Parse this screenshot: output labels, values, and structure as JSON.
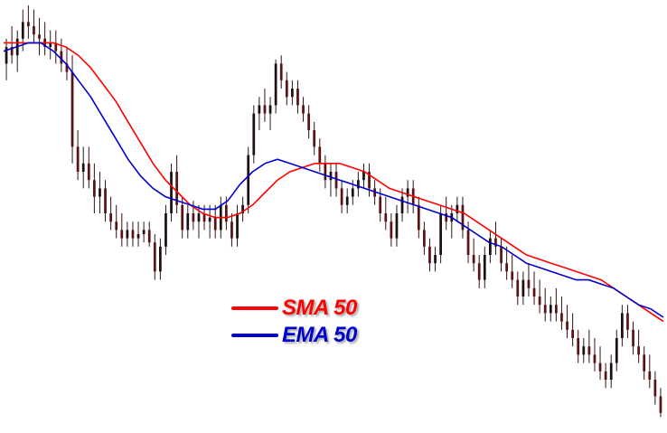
{
  "chart_data": {
    "type": "line",
    "title": "",
    "xlabel": "",
    "ylabel": "",
    "grid": false,
    "ylim": [
      0,
      100
    ],
    "legend_placement": "center-left",
    "legend": [
      {
        "label": "SMA 50",
        "color": "#ff0000"
      },
      {
        "label": "EMA 50",
        "color": "#0000cc"
      }
    ],
    "candles": [
      {
        "o": 86,
        "h": 92,
        "l": 82,
        "c": 90
      },
      {
        "o": 90,
        "h": 95,
        "l": 86,
        "c": 88
      },
      {
        "o": 88,
        "h": 94,
        "l": 84,
        "c": 92
      },
      {
        "o": 92,
        "h": 99,
        "l": 89,
        "c": 96
      },
      {
        "o": 96,
        "h": 100,
        "l": 92,
        "c": 95
      },
      {
        "o": 95,
        "h": 99,
        "l": 91,
        "c": 93
      },
      {
        "o": 93,
        "h": 97,
        "l": 88,
        "c": 92
      },
      {
        "o": 92,
        "h": 96,
        "l": 88,
        "c": 90
      },
      {
        "o": 90,
        "h": 94,
        "l": 87,
        "c": 91
      },
      {
        "o": 91,
        "h": 94,
        "l": 86,
        "c": 89
      },
      {
        "o": 89,
        "h": 92,
        "l": 84,
        "c": 86
      },
      {
        "o": 86,
        "h": 90,
        "l": 82,
        "c": 84
      },
      {
        "o": 84,
        "h": 88,
        "l": 62,
        "c": 66
      },
      {
        "o": 66,
        "h": 70,
        "l": 58,
        "c": 60
      },
      {
        "o": 60,
        "h": 66,
        "l": 56,
        "c": 62
      },
      {
        "o": 62,
        "h": 66,
        "l": 56,
        "c": 58
      },
      {
        "o": 58,
        "h": 62,
        "l": 50,
        "c": 54
      },
      {
        "o": 54,
        "h": 60,
        "l": 50,
        "c": 56
      },
      {
        "o": 56,
        "h": 58,
        "l": 48,
        "c": 50
      },
      {
        "o": 50,
        "h": 54,
        "l": 46,
        "c": 48
      },
      {
        "o": 48,
        "h": 52,
        "l": 44,
        "c": 46
      },
      {
        "o": 46,
        "h": 50,
        "l": 42,
        "c": 44
      },
      {
        "o": 44,
        "h": 48,
        "l": 42,
        "c": 46
      },
      {
        "o": 46,
        "h": 48,
        "l": 42,
        "c": 44
      },
      {
        "o": 44,
        "h": 48,
        "l": 42,
        "c": 45
      },
      {
        "o": 45,
        "h": 48,
        "l": 43,
        "c": 46
      },
      {
        "o": 46,
        "h": 48,
        "l": 42,
        "c": 43
      },
      {
        "o": 43,
        "h": 45,
        "l": 34,
        "c": 36
      },
      {
        "o": 36,
        "h": 44,
        "l": 34,
        "c": 42
      },
      {
        "o": 42,
        "h": 52,
        "l": 40,
        "c": 50
      },
      {
        "o": 50,
        "h": 62,
        "l": 48,
        "c": 60
      },
      {
        "o": 60,
        "h": 64,
        "l": 50,
        "c": 52
      },
      {
        "o": 52,
        "h": 54,
        "l": 44,
        "c": 46
      },
      {
        "o": 46,
        "h": 52,
        "l": 44,
        "c": 50
      },
      {
        "o": 50,
        "h": 53,
        "l": 46,
        "c": 48
      },
      {
        "o": 48,
        "h": 52,
        "l": 44,
        "c": 50
      },
      {
        "o": 50,
        "h": 52,
        "l": 46,
        "c": 48
      },
      {
        "o": 48,
        "h": 52,
        "l": 44,
        "c": 49
      },
      {
        "o": 49,
        "h": 52,
        "l": 44,
        "c": 46
      },
      {
        "o": 46,
        "h": 54,
        "l": 44,
        "c": 52
      },
      {
        "o": 52,
        "h": 54,
        "l": 46,
        "c": 48
      },
      {
        "o": 48,
        "h": 50,
        "l": 42,
        "c": 44
      },
      {
        "o": 44,
        "h": 52,
        "l": 42,
        "c": 50
      },
      {
        "o": 50,
        "h": 54,
        "l": 48,
        "c": 52
      },
      {
        "o": 52,
        "h": 66,
        "l": 50,
        "c": 64
      },
      {
        "o": 64,
        "h": 76,
        "l": 62,
        "c": 74
      },
      {
        "o": 74,
        "h": 78,
        "l": 70,
        "c": 76
      },
      {
        "o": 76,
        "h": 80,
        "l": 72,
        "c": 74
      },
      {
        "o": 74,
        "h": 78,
        "l": 70,
        "c": 76
      },
      {
        "o": 76,
        "h": 87,
        "l": 74,
        "c": 86
      },
      {
        "o": 86,
        "h": 88,
        "l": 80,
        "c": 82
      },
      {
        "o": 82,
        "h": 84,
        "l": 76,
        "c": 78
      },
      {
        "o": 78,
        "h": 82,
        "l": 76,
        "c": 80
      },
      {
        "o": 80,
        "h": 82,
        "l": 74,
        "c": 76
      },
      {
        "o": 76,
        "h": 78,
        "l": 72,
        "c": 74
      },
      {
        "o": 74,
        "h": 76,
        "l": 68,
        "c": 70
      },
      {
        "o": 70,
        "h": 72,
        "l": 64,
        "c": 66
      },
      {
        "o": 66,
        "h": 68,
        "l": 60,
        "c": 62
      },
      {
        "o": 62,
        "h": 64,
        "l": 56,
        "c": 58
      },
      {
        "o": 58,
        "h": 62,
        "l": 54,
        "c": 60
      },
      {
        "o": 60,
        "h": 62,
        "l": 54,
        "c": 56
      },
      {
        "o": 56,
        "h": 58,
        "l": 50,
        "c": 52
      },
      {
        "o": 52,
        "h": 56,
        "l": 50,
        "c": 54
      },
      {
        "o": 54,
        "h": 58,
        "l": 52,
        "c": 56
      },
      {
        "o": 56,
        "h": 60,
        "l": 54,
        "c": 58
      },
      {
        "o": 58,
        "h": 62,
        "l": 56,
        "c": 60
      },
      {
        "o": 60,
        "h": 62,
        "l": 54,
        "c": 56
      },
      {
        "o": 56,
        "h": 58,
        "l": 52,
        "c": 54
      },
      {
        "o": 54,
        "h": 56,
        "l": 48,
        "c": 50
      },
      {
        "o": 50,
        "h": 54,
        "l": 46,
        "c": 48
      },
      {
        "o": 48,
        "h": 50,
        "l": 42,
        "c": 44
      },
      {
        "o": 44,
        "h": 52,
        "l": 42,
        "c": 50
      },
      {
        "o": 50,
        "h": 56,
        "l": 48,
        "c": 54
      },
      {
        "o": 54,
        "h": 58,
        "l": 50,
        "c": 56
      },
      {
        "o": 56,
        "h": 58,
        "l": 50,
        "c": 52
      },
      {
        "o": 52,
        "h": 54,
        "l": 44,
        "c": 46
      },
      {
        "o": 46,
        "h": 48,
        "l": 40,
        "c": 42
      },
      {
        "o": 42,
        "h": 44,
        "l": 36,
        "c": 38
      },
      {
        "o": 38,
        "h": 42,
        "l": 36,
        "c": 40
      },
      {
        "o": 40,
        "h": 52,
        "l": 38,
        "c": 50
      },
      {
        "o": 50,
        "h": 54,
        "l": 46,
        "c": 48
      },
      {
        "o": 48,
        "h": 52,
        "l": 44,
        "c": 50
      },
      {
        "o": 50,
        "h": 54,
        "l": 48,
        "c": 52
      },
      {
        "o": 52,
        "h": 54,
        "l": 44,
        "c": 46
      },
      {
        "o": 46,
        "h": 48,
        "l": 38,
        "c": 40
      },
      {
        "o": 40,
        "h": 44,
        "l": 36,
        "c": 38
      },
      {
        "o": 38,
        "h": 40,
        "l": 32,
        "c": 34
      },
      {
        "o": 34,
        "h": 42,
        "l": 32,
        "c": 40
      },
      {
        "o": 40,
        "h": 46,
        "l": 38,
        "c": 44
      },
      {
        "o": 44,
        "h": 48,
        "l": 40,
        "c": 42
      },
      {
        "o": 42,
        "h": 44,
        "l": 36,
        "c": 38
      },
      {
        "o": 38,
        "h": 42,
        "l": 34,
        "c": 36
      },
      {
        "o": 36,
        "h": 40,
        "l": 32,
        "c": 34
      },
      {
        "o": 34,
        "h": 36,
        "l": 28,
        "c": 30
      },
      {
        "o": 30,
        "h": 36,
        "l": 28,
        "c": 34
      },
      {
        "o": 34,
        "h": 38,
        "l": 30,
        "c": 32
      },
      {
        "o": 32,
        "h": 36,
        "l": 28,
        "c": 30
      },
      {
        "o": 30,
        "h": 34,
        "l": 26,
        "c": 28
      },
      {
        "o": 28,
        "h": 32,
        "l": 24,
        "c": 26
      },
      {
        "o": 26,
        "h": 30,
        "l": 24,
        "c": 28
      },
      {
        "o": 28,
        "h": 32,
        "l": 24,
        "c": 26
      },
      {
        "o": 26,
        "h": 30,
        "l": 22,
        "c": 24
      },
      {
        "o": 24,
        "h": 28,
        "l": 20,
        "c": 22
      },
      {
        "o": 22,
        "h": 26,
        "l": 18,
        "c": 20
      },
      {
        "o": 20,
        "h": 22,
        "l": 14,
        "c": 16
      },
      {
        "o": 16,
        "h": 20,
        "l": 14,
        "c": 18
      },
      {
        "o": 18,
        "h": 22,
        "l": 14,
        "c": 16
      },
      {
        "o": 16,
        "h": 20,
        "l": 12,
        "c": 14
      },
      {
        "o": 14,
        "h": 18,
        "l": 10,
        "c": 12
      },
      {
        "o": 12,
        "h": 14,
        "l": 8,
        "c": 10
      },
      {
        "o": 10,
        "h": 16,
        "l": 8,
        "c": 14
      },
      {
        "o": 14,
        "h": 22,
        "l": 12,
        "c": 20
      },
      {
        "o": 20,
        "h": 28,
        "l": 18,
        "c": 26
      },
      {
        "o": 26,
        "h": 28,
        "l": 20,
        "c": 22
      },
      {
        "o": 22,
        "h": 24,
        "l": 16,
        "c": 18
      },
      {
        "o": 18,
        "h": 22,
        "l": 14,
        "c": 16
      },
      {
        "o": 16,
        "h": 18,
        "l": 10,
        "c": 12
      },
      {
        "o": 12,
        "h": 16,
        "l": 8,
        "c": 10
      },
      {
        "o": 10,
        "h": 12,
        "l": 4,
        "c": 6
      },
      {
        "o": 6,
        "h": 8,
        "l": 1,
        "c": 2
      }
    ],
    "sma50": [
      91,
      91,
      91,
      91,
      91,
      90,
      88,
      85,
      81,
      77,
      72,
      67,
      62,
      58,
      55,
      52,
      50,
      49,
      49,
      50,
      52,
      55,
      58,
      60,
      61,
      62,
      62,
      62,
      61,
      60,
      58,
      56,
      55,
      54,
      53,
      52,
      51,
      50,
      48,
      46,
      44,
      42,
      40,
      39,
      38,
      37,
      36,
      35,
      34,
      32,
      30,
      28,
      26,
      24
    ],
    "ema50": [
      89,
      90,
      91,
      91,
      89,
      86,
      82,
      78,
      73,
      68,
      63,
      59,
      56,
      54,
      53,
      52,
      51,
      51,
      53,
      57,
      60,
      62,
      63,
      62,
      61,
      60,
      59,
      58,
      57,
      56,
      55,
      54,
      53,
      52,
      51,
      50,
      49,
      47,
      45,
      43,
      42,
      40,
      38,
      37,
      36,
      35,
      34,
      34,
      33,
      32,
      30,
      28,
      27,
      25
    ]
  }
}
